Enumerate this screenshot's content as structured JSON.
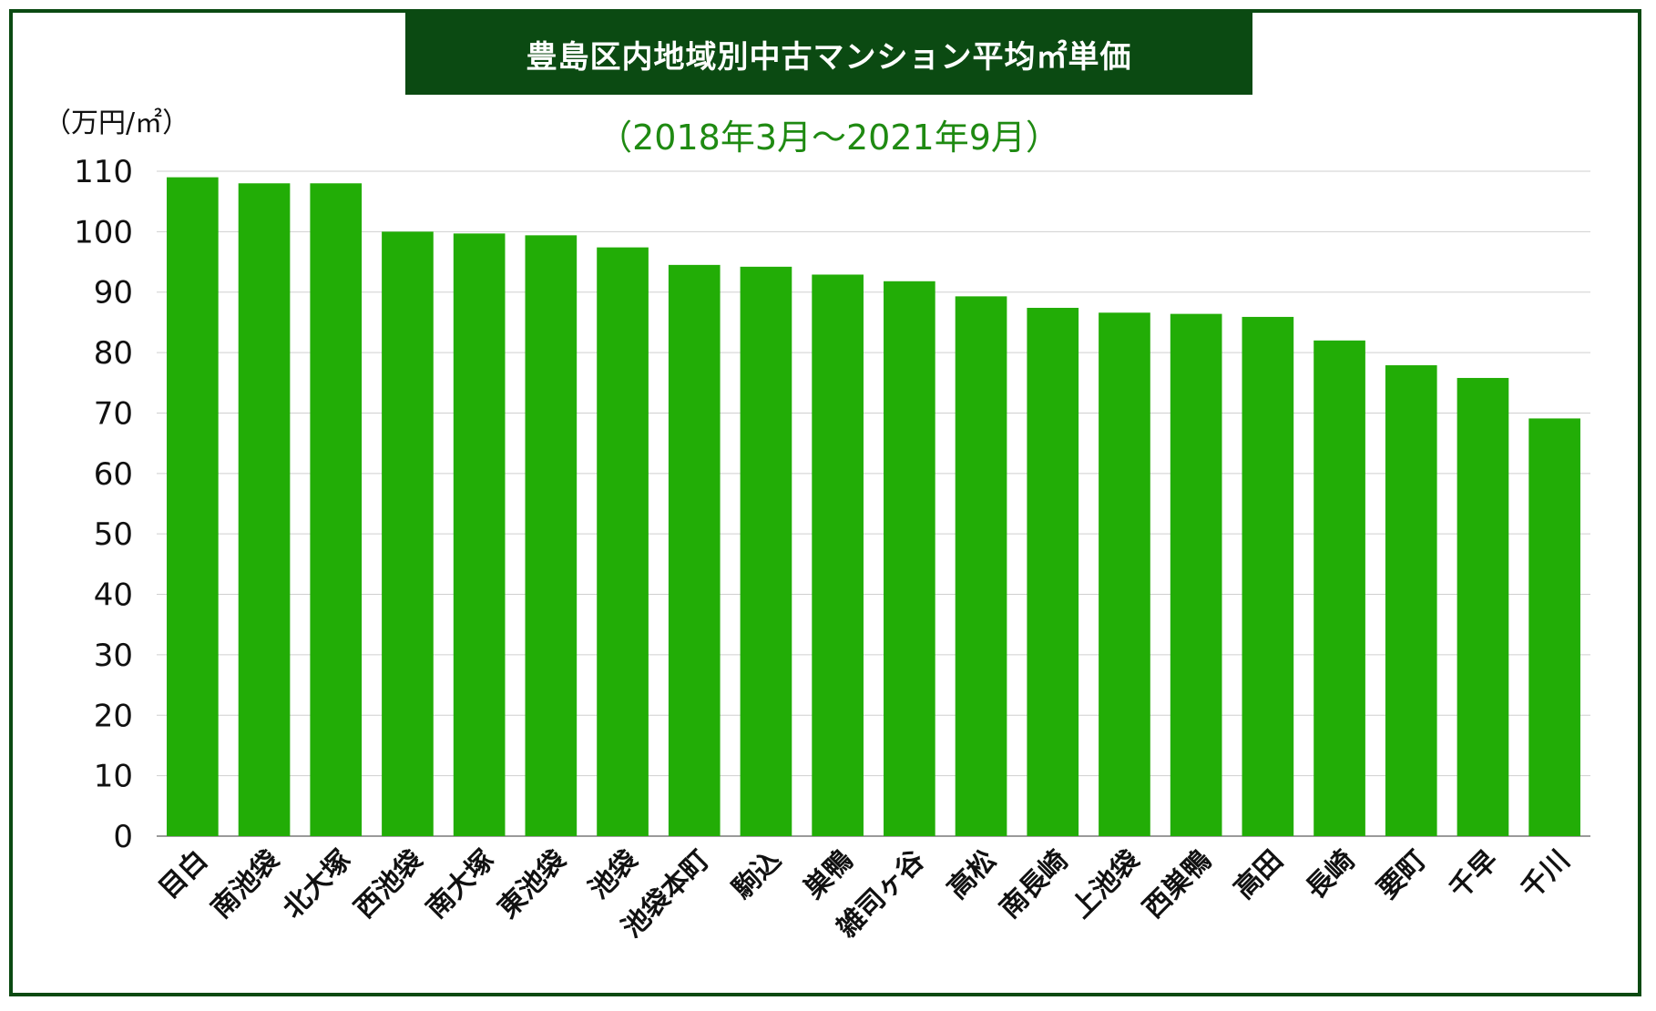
{
  "chart_data": {
    "type": "bar",
    "title": "豊島区内地域別中古マンション平均㎡単価",
    "subtitle": "（2018年3月〜2021年9月）",
    "ylabel": "（万円/㎡）",
    "xlabel": "",
    "ylim": [
      0,
      110
    ],
    "yticks": [
      0,
      10,
      20,
      30,
      40,
      50,
      60,
      70,
      80,
      90,
      100,
      110
    ],
    "grid": true,
    "categories": [
      "目白",
      "南池袋",
      "北大塚",
      "西池袋",
      "南大塚",
      "東池袋",
      "池袋",
      "池袋本町",
      "駒込",
      "巣鴨",
      "雑司ヶ谷",
      "高松",
      "南長崎",
      "上池袋",
      "西巣鴨",
      "高田",
      "長崎",
      "要町",
      "千早",
      "千川"
    ],
    "values": [
      109,
      108,
      108,
      100,
      99.7,
      99.4,
      97.4,
      94.5,
      94.2,
      92.9,
      91.8,
      89.3,
      87.4,
      86.6,
      86.4,
      85.9,
      82.0,
      77.9,
      75.8,
      69.1
    ]
  },
  "colors": {
    "bar": "#22ad06",
    "frame": "#0b4a12",
    "title_bg": "#0b4a12",
    "title_text": "#ffffff",
    "subtitle": "#1f8a12",
    "grid": "#cfcfcf"
  }
}
